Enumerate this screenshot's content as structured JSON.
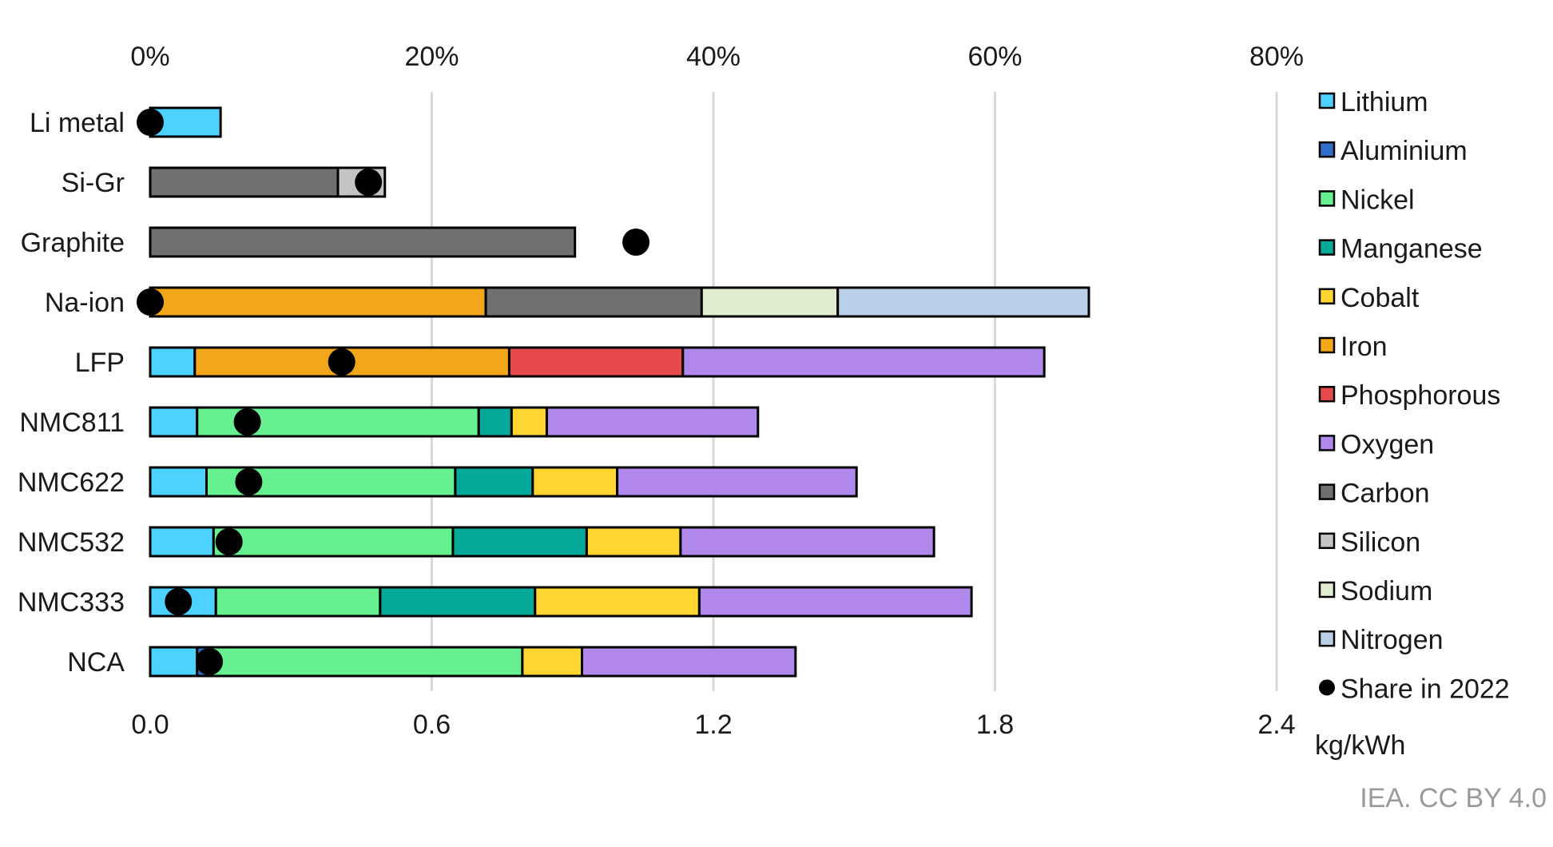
{
  "chart_data": {
    "type": "bar",
    "orientation": "horizontal",
    "stacked": true,
    "categories": [
      "Li metal",
      "Si-Gr",
      "Graphite",
      "Na-ion",
      "LFP",
      "NMC811",
      "NMC622",
      "NMC532",
      "NMC333",
      "NCA"
    ],
    "x_axis_bottom": {
      "unit_label": "kg/kWh",
      "range": [
        0,
        2.4
      ],
      "ticks": [
        "0.0",
        "0.6",
        "1.2",
        "1.8",
        "2.4"
      ]
    },
    "x_axis_top": {
      "range": [
        0,
        80
      ],
      "ticks": [
        "0%",
        "20%",
        "40%",
        "60%",
        "80%"
      ]
    },
    "grid": true,
    "legend_position": "right",
    "series": [
      {
        "name": "Lithium",
        "color": "#4dd2ff",
        "values": [
          0.15,
          0,
          0,
          0,
          0.095,
          0.1,
          0.12,
          0.135,
          0.14,
          0.1
        ]
      },
      {
        "name": "Aluminium",
        "color": "#2f6ec9",
        "values": [
          0,
          0,
          0,
          0,
          0,
          0,
          0,
          0,
          0,
          0.023
        ]
      },
      {
        "name": "Nickel",
        "color": "#66f08f",
        "values": [
          0,
          0,
          0,
          0,
          0,
          0.6,
          0.53,
          0.51,
          0.35,
          0.67
        ]
      },
      {
        "name": "Manganese",
        "color": "#04a999",
        "values": [
          0,
          0,
          0,
          0,
          0,
          0.07,
          0.165,
          0.285,
          0.33,
          0
        ]
      },
      {
        "name": "Cobalt",
        "color": "#ffd630",
        "values": [
          0,
          0,
          0,
          0,
          0,
          0.075,
          0.18,
          0.2,
          0.35,
          0.127
        ]
      },
      {
        "name": "Iron",
        "color": "#f2a619",
        "values": [
          0,
          0,
          0,
          0.715,
          0.67,
          0,
          0,
          0,
          0,
          0
        ]
      },
      {
        "name": "Phosphorous",
        "color": "#e64a4a",
        "values": [
          0,
          0,
          0,
          0,
          0.37,
          0,
          0,
          0,
          0,
          0
        ]
      },
      {
        "name": "Oxygen",
        "color": "#b088ec",
        "values": [
          0,
          0,
          0,
          0,
          0.77,
          0.45,
          0.51,
          0.54,
          0.58,
          0.455
        ]
      },
      {
        "name": "Carbon",
        "color": "#707070",
        "values": [
          0,
          0.4,
          0.905,
          0.46,
          0,
          0,
          0,
          0,
          0,
          0
        ]
      },
      {
        "name": "Silicon",
        "color": "#c4c4c4",
        "values": [
          0,
          0.1,
          0,
          0,
          0,
          0,
          0,
          0,
          0,
          0
        ]
      },
      {
        "name": "Sodium",
        "color": "#dfecd0",
        "values": [
          0,
          0,
          0,
          0.29,
          0,
          0,
          0,
          0,
          0,
          0
        ]
      },
      {
        "name": "Nitrogen",
        "color": "#b9cfe8",
        "values": [
          0,
          0,
          0,
          0.535,
          0,
          0,
          0,
          0,
          0,
          0
        ]
      }
    ],
    "markers": {
      "name": "Share in 2022",
      "color": "#000000",
      "axis": "top",
      "values": [
        0,
        15.5,
        34.5,
        0,
        13.6,
        6.9,
        7.0,
        5.6,
        2.0,
        4.2
      ]
    }
  },
  "source_note": "IEA. CC BY 4.0"
}
